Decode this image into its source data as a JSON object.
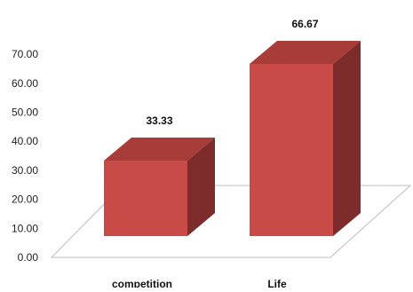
{
  "chart_data": {
    "type": "bar",
    "style": "3d-column",
    "categories": [
      "competition",
      "Life"
    ],
    "values": [
      33.33,
      66.67
    ],
    "data_labels": [
      "33.33",
      "66.67"
    ],
    "title": "",
    "xlabel": "",
    "ylabel": "",
    "ylim": [
      0,
      70
    ],
    "y_ticks": [
      "0.00",
      "10.00",
      "20.00",
      "30.00",
      "40.00",
      "50.00",
      "60.00",
      "70.00"
    ],
    "grid": false,
    "legend": "none",
    "colors": {
      "bar_front": "#c84b47",
      "bar_side": "#7e2b2b",
      "bar_top": "#a83c39",
      "floor_line": "#bdbdbd"
    }
  }
}
